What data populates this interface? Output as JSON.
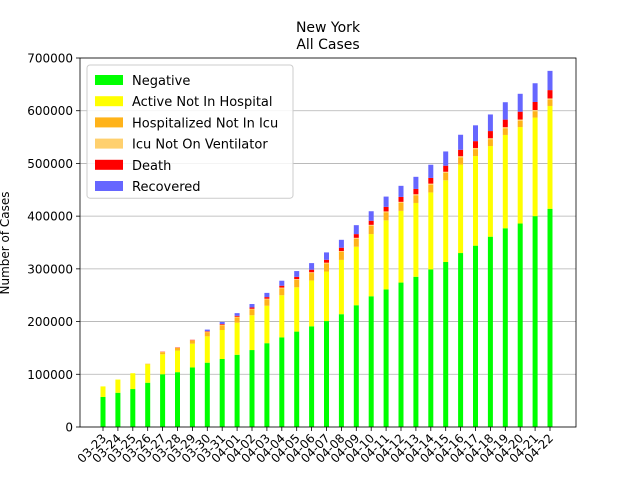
{
  "chart_data": {
    "type": "bar",
    "stacked": true,
    "title": "New York",
    "subtitle": "All Cases",
    "xlabel": "",
    "ylabel": "Number of Cases",
    "ylim": [
      0,
      700000
    ],
    "yticks": [
      0,
      100000,
      200000,
      300000,
      400000,
      500000,
      600000,
      700000
    ],
    "grid": "y",
    "legend_position": "top-left",
    "categories": [
      "03-23",
      "03-24",
      "03-25",
      "03-26",
      "03-27",
      "03-28",
      "03-29",
      "03-30",
      "03-31",
      "04-01",
      "04-02",
      "04-03",
      "04-04",
      "04-05",
      "04-06",
      "04-07",
      "04-08",
      "04-09",
      "04-10",
      "04-11",
      "04-12",
      "04-13",
      "04-14",
      "04-15",
      "04-16",
      "04-17",
      "04-18",
      "04-19",
      "04-20",
      "04-21",
      "04-22"
    ],
    "series": [
      {
        "name": "Negative",
        "color": "#00ff00",
        "values": [
          57000,
          65000,
          72000,
          84000,
          100000,
          104000,
          113000,
          122000,
          129000,
          137000,
          146000,
          159000,
          170000,
          181000,
          191000,
          201000,
          214000,
          231000,
          248000,
          261000,
          274000,
          285000,
          299000,
          313000,
          330000,
          344000,
          361000,
          377000,
          386000,
          400000,
          414000
        ]
      },
      {
        "name": "Active Not In Hospital",
        "color": "#ffff00",
        "values": [
          20000,
          25000,
          30000,
          35000,
          38000,
          41000,
          45000,
          50000,
          55000,
          61000,
          66000,
          71000,
          80000,
          84000,
          87000,
          94000,
          103000,
          111000,
          118000,
          131000,
          136000,
          140000,
          146000,
          155000,
          168000,
          170000,
          172000,
          177000,
          183000,
          187000,
          195000
        ]
      },
      {
        "name": "Hospitalized Not In Icu",
        "color": "#ffb31a",
        "values": [
          0,
          0,
          0,
          1000,
          4000,
          5000,
          6000,
          8000,
          9000,
          10000,
          11000,
          12000,
          13000,
          14000,
          14000,
          15000,
          15000,
          15000,
          15500,
          15000,
          15000,
          14500,
          14500,
          14000,
          13500,
          13000,
          12500,
          12500,
          12000,
          12000,
          12000
        ]
      },
      {
        "name": "Icu Not On Ventilator",
        "color": "#ffd06e",
        "values": [
          0,
          0,
          0,
          0,
          400,
          500,
          600,
          800,
          1000,
          1200,
          1300,
          1400,
          1500,
          1600,
          1600,
          1700,
          1800,
          1900,
          2000,
          2000,
          2100,
          2100,
          2200,
          2200,
          2200,
          2300,
          2300,
          2300,
          2300,
          2300,
          2300
        ]
      },
      {
        "name": "Death",
        "color": "#ff0000",
        "values": [
          0,
          0,
          0,
          0,
          500,
          600,
          800,
          1000,
          1300,
          1800,
          2500,
          3000,
          3500,
          4200,
          4800,
          5500,
          6300,
          7000,
          7800,
          8600,
          9400,
          10000,
          10800,
          11500,
          12200,
          13000,
          13600,
          14300,
          14800,
          15300,
          15800
        ]
      },
      {
        "name": "Recovered",
        "color": "#6666ff",
        "values": [
          0,
          0,
          0,
          0,
          0,
          0,
          0,
          3000,
          4000,
          5000,
          6500,
          8000,
          9500,
          11000,
          12500,
          14000,
          15000,
          17000,
          18000,
          19500,
          21000,
          23000,
          25000,
          27000,
          28500,
          30000,
          31500,
          33000,
          34000,
          35500,
          36500
        ]
      }
    ]
  }
}
